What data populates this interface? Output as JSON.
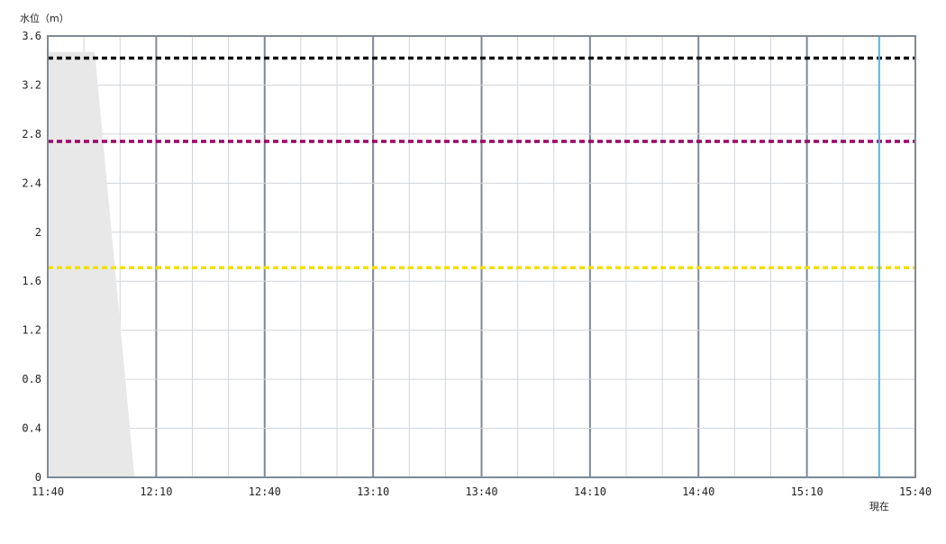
{
  "chart_data": {
    "type": "area",
    "ylabel": "水位（m）",
    "ylim": [
      0,
      3.6
    ],
    "yticks": [
      "0",
      "0.4",
      "0.8",
      "1.2",
      "1.6",
      "2",
      "2.4",
      "2.8",
      "3.2",
      "3.6"
    ],
    "xlim": [
      "11:40",
      "15:40"
    ],
    "xticks": [
      "11:40",
      "12:10",
      "12:40",
      "13:10",
      "13:40",
      "14:10",
      "14:40",
      "15:10",
      "15:40"
    ],
    "grid": true,
    "series": [
      {
        "x": [
          "11:40",
          "11:53",
          "12:04"
        ],
        "y": [
          3.47,
          3.47,
          0
        ],
        "color": "#e8e8e8"
      }
    ],
    "thresholds": [
      {
        "value": 3.42,
        "color": "#111111"
      },
      {
        "value": 2.74,
        "color": "#990066"
      },
      {
        "value": 1.71,
        "color": "#f0e000"
      }
    ],
    "now_marker": {
      "x": "15:30",
      "label": "現在",
      "color": "#4db8f0"
    }
  }
}
